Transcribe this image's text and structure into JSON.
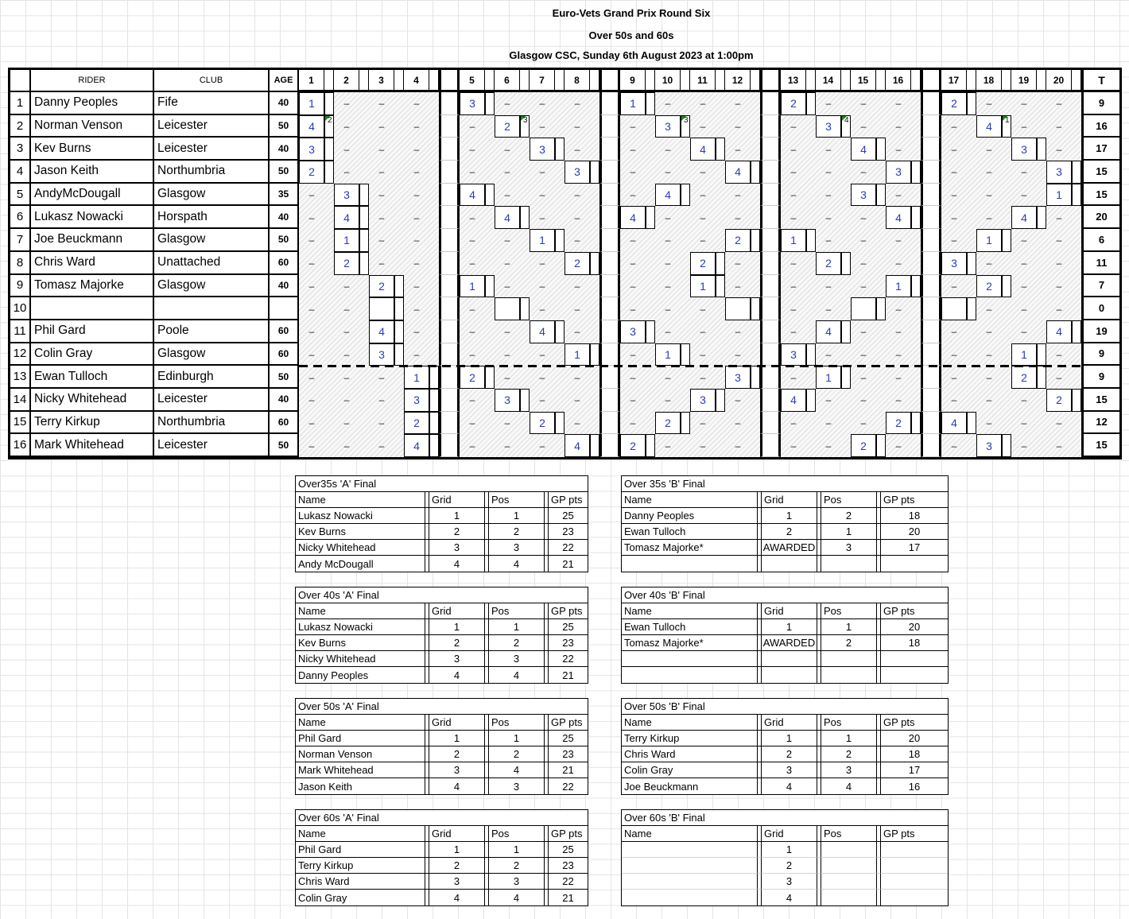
{
  "titles": {
    "line1": "Euro-Vets Grand Prix Round Six",
    "line2": "Over 50s and 60s",
    "line3": "Glasgow CSC, Sunday 6th August 2023 at 1:00pm"
  },
  "results_table": {
    "corner_label": "",
    "rider_header": "RIDER",
    "club_header": "CLUB",
    "age_header": "AGE",
    "total_header": "T",
    "heat_numbers": [
      "1",
      "2",
      "3",
      "4",
      "5",
      "6",
      "7",
      "8",
      "9",
      "10",
      "11",
      "12",
      "13",
      "14",
      "15",
      "16",
      "17",
      "18",
      "19",
      "20"
    ],
    "idle_mark": "–",
    "riders": [
      {
        "num": "1",
        "name": "Danny Peoples",
        "club": "Fife",
        "age": "40",
        "total": "9",
        "scores": {
          "1": "1",
          "5": "3",
          "9": "1",
          "13": "2",
          "17": "2"
        },
        "notes": {},
        "open_cells": []
      },
      {
        "num": "2",
        "name": "Norman Venson",
        "club": "Leicester",
        "age": "50",
        "total": "16",
        "scores": {
          "1": "4",
          "6": "2",
          "10": "3",
          "14": "3",
          "18": "4"
        },
        "notes": {
          "1": "2",
          "6": "3",
          "10": "3",
          "14": "4",
          "18": "1"
        },
        "open_cells": []
      },
      {
        "num": "3",
        "name": "Kev Burns",
        "club": "Leicester",
        "age": "40",
        "total": "17",
        "scores": {
          "1": "3",
          "7": "3",
          "11": "4",
          "15": "4",
          "19": "3"
        },
        "notes": {},
        "open_cells": []
      },
      {
        "num": "4",
        "name": "Jason Keith",
        "club": "Northumbria",
        "age": "50",
        "total": "15",
        "scores": {
          "1": "2",
          "8": "3",
          "12": "4",
          "16": "3",
          "20": "3"
        },
        "notes": {},
        "open_cells": []
      },
      {
        "num": "5",
        "name": "AndyMcDougall",
        "club": "Glasgow",
        "age": "35",
        "total": "15",
        "scores": {
          "2": "3",
          "5": "4",
          "10": "4",
          "15": "3",
          "20": "1"
        },
        "notes": {},
        "open_cells": []
      },
      {
        "num": "6",
        "name": "Lukasz Nowacki",
        "club": "Horspath",
        "age": "40",
        "total": "20",
        "scores": {
          "2": "4",
          "6": "4",
          "9": "4",
          "16": "4",
          "19": "4"
        },
        "notes": {},
        "open_cells": []
      },
      {
        "num": "7",
        "name": "Joe Beuckmann",
        "club": "Glasgow",
        "age": "50",
        "total": "6",
        "scores": {
          "2": "1",
          "7": "1",
          "12": "2",
          "13": "1",
          "18": "1"
        },
        "notes": {},
        "open_cells": []
      },
      {
        "num": "8",
        "name": "Chris Ward",
        "club": "Unattached",
        "age": "60",
        "total": "11",
        "scores": {
          "2": "2",
          "8": "2",
          "11": "2",
          "14": "2",
          "17": "3"
        },
        "notes": {},
        "open_cells": []
      },
      {
        "num": "9",
        "name": "Tomasz Majorke",
        "club": "Glasgow",
        "age": "40",
        "total": "7",
        "scores": {
          "3": "2",
          "5": "1",
          "11": "1",
          "16": "1",
          "18": "2"
        },
        "notes": {},
        "open_cells": []
      },
      {
        "num": "10",
        "name": "",
        "club": "",
        "age": "",
        "total": "0",
        "scores": {},
        "notes": {},
        "open_cells": [
          3,
          6,
          12,
          15,
          17
        ]
      },
      {
        "num": "11",
        "name": "Phil Gard",
        "club": "Poole",
        "age": "60",
        "total": "19",
        "scores": {
          "3": "4",
          "7": "4",
          "9": "3",
          "14": "4",
          "20": "4"
        },
        "notes": {},
        "open_cells": []
      },
      {
        "num": "12",
        "name": "Colin Gray",
        "club": "Glasgow",
        "age": "60",
        "total": "9",
        "scores": {
          "3": "3",
          "8": "1",
          "10": "1",
          "13": "3",
          "19": "1"
        },
        "notes": {},
        "open_cells": []
      },
      {
        "num": "13",
        "name": "Ewan Tulloch",
        "club": "Edinburgh",
        "age": "50",
        "total": "9",
        "scores": {
          "4": "1",
          "5": "2",
          "12": "3",
          "14": "1",
          "19": "2"
        },
        "notes": {},
        "open_cells": []
      },
      {
        "num": "14",
        "name": "Nicky Whitehead",
        "club": "Leicester",
        "age": "40",
        "total": "15",
        "scores": {
          "4": "3",
          "6": "3",
          "11": "3",
          "13": "4",
          "20": "2"
        },
        "notes": {},
        "open_cells": []
      },
      {
        "num": "15",
        "name": "Terry Kirkup",
        "club": "Northumbria",
        "age": "60",
        "total": "12",
        "scores": {
          "4": "2",
          "7": "2",
          "10": "2",
          "16": "2",
          "17": "4"
        },
        "notes": {},
        "open_cells": []
      },
      {
        "num": "16",
        "name": "Mark Whitehead",
        "club": "Leicester",
        "age": "50",
        "total": "15",
        "scores": {
          "4": "4",
          "8": "4",
          "9": "2",
          "15": "2",
          "18": "3"
        },
        "notes": {},
        "open_cells": []
      }
    ]
  },
  "finals_headers": [
    "Name",
    "Grid",
    "Pos",
    "GP pts"
  ],
  "finals": [
    {
      "title": "Over35s 'A' Final",
      "open": false,
      "rows": [
        [
          "Lukasz Nowacki",
          "1",
          "1",
          "25"
        ],
        [
          "Kev Burns",
          "2",
          "2",
          "23"
        ],
        [
          "Nicky Whitehead",
          "3",
          "3",
          "22"
        ],
        [
          "Andy McDougall",
          "4",
          "4",
          "21"
        ]
      ]
    },
    {
      "title": "Over 35s 'B' Final",
      "open": false,
      "rows": [
        [
          "Danny Peoples",
          "1",
          "2",
          "18"
        ],
        [
          "Ewan Tulloch",
          "2",
          "1",
          "20"
        ],
        [
          "Tomasz Majorke*",
          "AWARDED",
          "3",
          "17"
        ],
        [
          "",
          "",
          "",
          ""
        ]
      ]
    },
    {
      "title": "Over 40s 'A' Final",
      "open": false,
      "rows": [
        [
          "Lukasz Nowacki",
          "1",
          "1",
          "25"
        ],
        [
          "Kev Burns",
          "2",
          "2",
          "23"
        ],
        [
          "Nicky Whitehead",
          "3",
          "3",
          "22"
        ],
        [
          "Danny Peoples",
          "4",
          "4",
          "21"
        ]
      ]
    },
    {
      "title": "Over 40s 'B' Final",
      "open": false,
      "rows": [
        [
          "Ewan Tulloch",
          "1",
          "1",
          "20"
        ],
        [
          "Tomasz Majorke*",
          "AWARDED",
          "2",
          "18"
        ],
        [
          "",
          "",
          "",
          ""
        ],
        [
          "",
          "",
          "",
          ""
        ]
      ]
    },
    {
      "title": "Over 50s 'A' Final",
      "open": false,
      "rows": [
        [
          "Phil Gard",
          "1",
          "1",
          "25"
        ],
        [
          "Norman Venson",
          "2",
          "2",
          "23"
        ],
        [
          "Mark Whitehead",
          "3",
          "4",
          "21"
        ],
        [
          "Jason Keith",
          "4",
          "3",
          "22"
        ]
      ]
    },
    {
      "title": "Over 50s 'B' Final",
      "open": false,
      "rows": [
        [
          "Terry Kirkup",
          "1",
          "1",
          "20"
        ],
        [
          "Chris Ward",
          "2",
          "2",
          "18"
        ],
        [
          "Colin Gray",
          "3",
          "3",
          "17"
        ],
        [
          "Joe Beuckmann",
          "4",
          "4",
          "16"
        ]
      ]
    },
    {
      "title": "Over 60s 'A' Final",
      "open": false,
      "rows": [
        [
          "Phil Gard",
          "1",
          "1",
          "25"
        ],
        [
          "Terry Kirkup",
          "2",
          "2",
          "23"
        ],
        [
          "Chris Ward",
          "3",
          "3",
          "22"
        ],
        [
          "Colin Gray",
          "4",
          "4",
          "21"
        ]
      ]
    },
    {
      "title": "Over 60s 'B' Final",
      "open": true,
      "rows": [
        [
          "",
          "1",
          "",
          ""
        ],
        [
          "",
          "2",
          "",
          ""
        ],
        [
          "",
          "3",
          "",
          ""
        ],
        [
          "",
          "4",
          "",
          ""
        ]
      ]
    }
  ],
  "colors": {
    "score_text": "#2a3bb8",
    "note_flag_green": "#178717",
    "hatch_line": "#dedede",
    "sheet_gridline": "#e4e4e4",
    "border_black": "#000000"
  }
}
